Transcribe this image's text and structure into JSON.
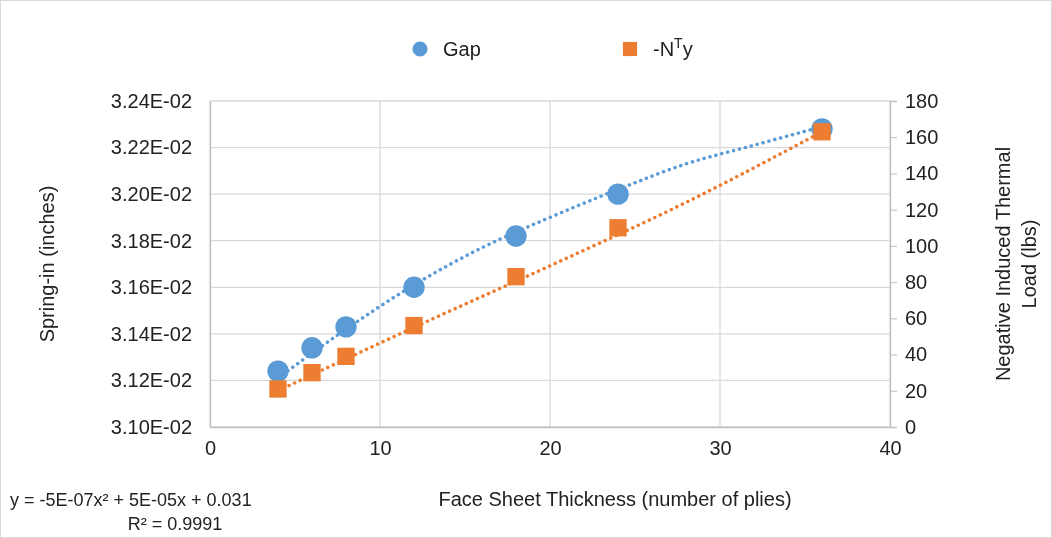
{
  "chart_data": {
    "type": "scatter",
    "xlabel": "Face Sheet Thickness (number of plies)",
    "ylabel": "Spring-in (inches)",
    "y2label": "Negative Induced Thermal Load (lbs)",
    "x": [
      4,
      6,
      8,
      12,
      18,
      24,
      36
    ],
    "series": [
      {
        "name": "Gap",
        "color": "#5b9bd5",
        "marker": "circle",
        "values": [
          0.03124,
          0.03134,
          0.03143,
          0.0316,
          0.03182,
          0.032,
          0.03228
        ]
      },
      {
        "name": "-N$^{T}$y",
        "color": "#ed7d31",
        "marker": "square",
        "axis": "y2",
        "values": [
          21,
          30,
          39,
          56,
          83,
          110,
          163
        ]
      },
      {
        "type": "line",
        "color": "#5b9bd5",
        "line_style": "dotted",
        "x": [
          4,
          8,
          12,
          16,
          20,
          24,
          28,
          32,
          36
        ],
        "values": [
          0.03121,
          0.03142,
          0.03161,
          0.03177,
          0.0319,
          0.03202,
          0.03213,
          0.03221,
          0.03229
        ]
      },
      {
        "type": "line",
        "color": "#ed7d31",
        "line_style": "dotted",
        "axis": "y2",
        "x": [
          4,
          12,
          20,
          28,
          36
        ],
        "values": [
          20,
          55,
          89,
          124,
          163
        ]
      }
    ],
    "xlim": [
      0,
      40
    ],
    "xticks": [
      0,
      10,
      20,
      30,
      40
    ],
    "ylim": [
      0.031,
      0.0324
    ],
    "yticks": [
      {
        "value": 0.031,
        "label": "3.10E-02"
      },
      {
        "value": 0.0312,
        "label": "3.12E-02"
      },
      {
        "value": 0.0314,
        "label": "3.14E-02"
      },
      {
        "value": 0.0316,
        "label": "3.16E-02"
      },
      {
        "value": 0.0318,
        "label": "3.18E-02"
      },
      {
        "value": 0.032,
        "label": "3.20E-02"
      },
      {
        "value": 0.0322,
        "label": "3.22E-02"
      },
      {
        "value": 0.0324,
        "label": "3.24E-02"
      }
    ],
    "y2lim": [
      0,
      180
    ],
    "y2ticks": [
      0,
      20,
      40,
      60,
      80,
      100,
      120,
      140,
      160,
      180
    ],
    "grid": true,
    "legend": "top",
    "annotations": [
      "y = -5E-07x² + 5E-05x + 0.031",
      "R² = 0.9991"
    ]
  }
}
